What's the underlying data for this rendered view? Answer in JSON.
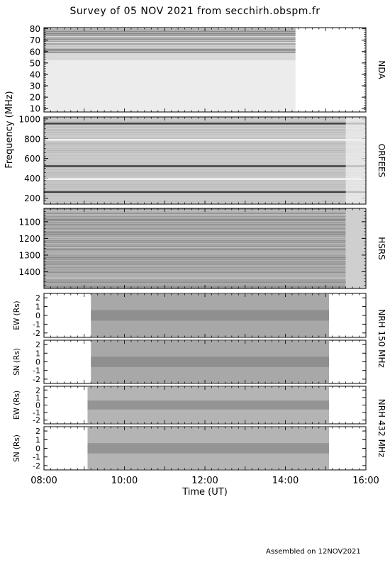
{
  "title": "Survey of 05 NOV 2021 from secchirh.obspm.fr",
  "footer": "Assembled on  12NOV2021",
  "colors": {
    "background": "#ffffff",
    "axis": "#000000",
    "spectrogram_base": "#c8c8c8"
  },
  "chart_data": [
    {
      "type": "heatmap",
      "instrument": "NDA",
      "ylabel": "Frequency (MHz)",
      "ylim": [
        81,
        7
      ],
      "yticks": [
        10,
        20,
        30,
        40,
        50,
        60,
        70,
        80
      ],
      "xlim": [
        "08:00",
        "16:00"
      ],
      "data_coverage": [
        "08:00",
        "14:15"
      ]
    },
    {
      "type": "heatmap",
      "instrument": "ORFEES",
      "ylabel": "Frequency (MHz)",
      "ylim": [
        1020,
        140
      ],
      "yticks": [
        200,
        400,
        600,
        800,
        1000
      ],
      "xlim": [
        "08:00",
        "16:00"
      ],
      "data_coverage": [
        "08:00",
        "16:00"
      ],
      "bright_bands_mhz": [
        265,
        395,
        525,
        790,
        955
      ]
    },
    {
      "type": "heatmap",
      "instrument": "HSRS",
      "ylim": [
        1020,
        1500
      ],
      "yticks": [
        1100,
        1200,
        1300,
        1400
      ],
      "xlim": [
        "08:00",
        "16:00"
      ],
      "data_coverage": [
        "08:00",
        "15:30"
      ]
    },
    {
      "type": "heatmap",
      "instrument": "NRH 150 MHz",
      "label": "NRH 150 MHz",
      "subpanels": [
        {
          "ylabel": "EW (Rs)",
          "ylim": [
            -2.5,
            2.5
          ],
          "yticks": [
            2,
            1,
            0,
            -1,
            -2
          ]
        },
        {
          "ylabel": "SN (Rs)",
          "ylim": [
            -2.5,
            2.5
          ],
          "yticks": [
            2,
            1,
            0,
            -1,
            -2
          ]
        }
      ],
      "xlim": [
        "08:00",
        "16:00"
      ],
      "data_coverage": [
        "09:10",
        "15:05"
      ]
    },
    {
      "type": "heatmap",
      "instrument": "NRH 432 MHz",
      "label": "NRH 432 MHz",
      "subpanels": [
        {
          "ylabel": "EW (Rs)",
          "ylim": [
            -2.5,
            2.5
          ],
          "yticks": [
            2,
            1,
            0,
            -1,
            -2
          ]
        },
        {
          "ylabel": "SN (Rs)",
          "ylim": [
            -2.5,
            2.5
          ],
          "yticks": [
            2,
            1,
            0,
            -1,
            -2
          ]
        }
      ],
      "xlim": [
        "08:00",
        "16:00"
      ],
      "data_coverage": [
        "09:05",
        "15:05"
      ]
    }
  ],
  "xaxis": {
    "label": "Time (UT)",
    "ticks": [
      "08:00",
      "10:00",
      "12:00",
      "14:00",
      "16:00"
    ]
  }
}
